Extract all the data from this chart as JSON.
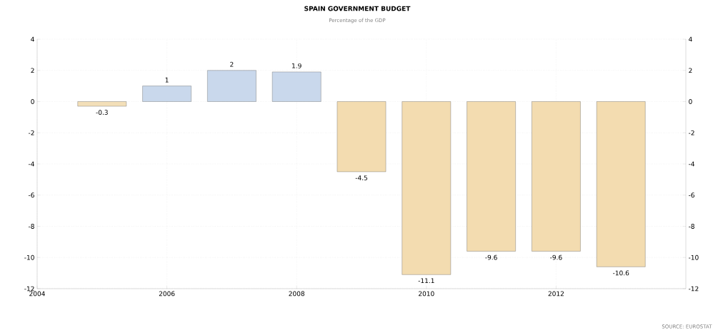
{
  "chart_data": {
    "type": "bar",
    "title": "SPAIN GOVERNMENT BUDGET",
    "subtitle": "Percentage of the GDP",
    "x": [
      2005,
      2006,
      2007,
      2008,
      2009,
      2010,
      2011,
      2012,
      2013
    ],
    "values": [
      -0.3,
      1,
      2,
      1.9,
      -4.5,
      -11.1,
      -9.6,
      -9.6,
      -10.6
    ],
    "value_labels": [
      "-0.3",
      "1",
      "2",
      "1.9",
      "-4.5",
      "-11.1",
      "-9.6",
      "-9.6",
      "-10.6"
    ],
    "colors": [
      "#f3dfb8",
      "#c9d8ec",
      "#c9d8ec",
      "#c9d8ec",
      "#f3dcb0",
      "#f3dcb0",
      "#f3dcb0",
      "#f3dcb0",
      "#f3dcb0"
    ],
    "xlim": [
      2004,
      2014
    ],
    "xticks": [
      2004,
      2006,
      2008,
      2010,
      2012
    ],
    "ylim": [
      -12,
      4
    ],
    "yticks": [
      -12,
      -10,
      -8,
      -6,
      -4,
      -2,
      0,
      2,
      4
    ],
    "y2lim": [
      -12,
      4
    ],
    "y2ticks": [
      -12,
      -10,
      -8,
      -6,
      -4,
      -2,
      0,
      2,
      4
    ],
    "grid": true,
    "annotations": [
      "SOURCE: EUROSTAT"
    ]
  }
}
